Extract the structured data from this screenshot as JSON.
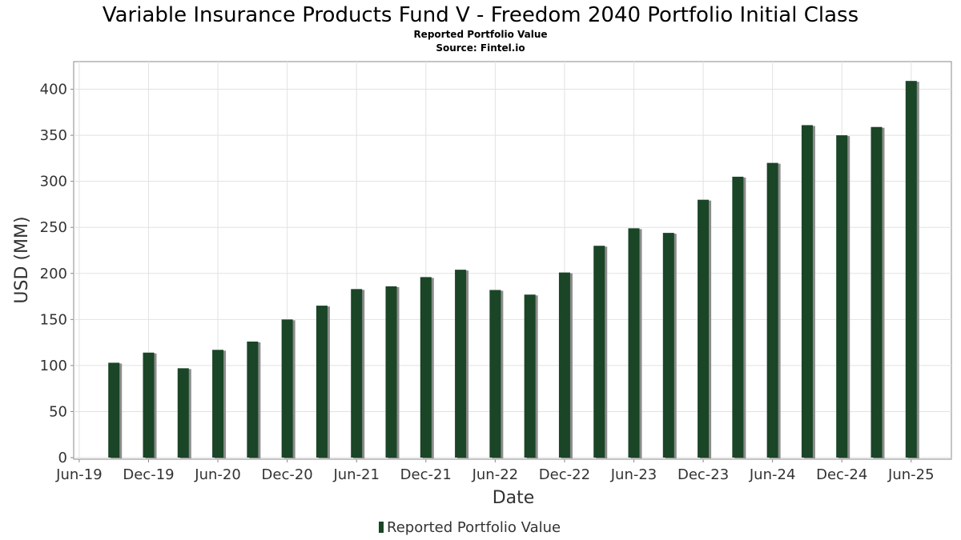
{
  "chart_data": {
    "type": "bar",
    "title": "Variable Insurance Products Fund V - Freedom 2040 Portfolio Initial Class",
    "subtitle": "Reported Portfolio Value",
    "source": "Source: Fintel.io",
    "xlabel": "Date",
    "ylabel": "USD (MM)",
    "ylim": [
      0,
      430
    ],
    "yticks": [
      0,
      50,
      100,
      150,
      200,
      250,
      300,
      350,
      400
    ],
    "xlim": [
      2019.46,
      2025.79
    ],
    "xticks": [
      {
        "label": "Jun-19",
        "x": 2019.5
      },
      {
        "label": "Dec-19",
        "x": 2020.0
      },
      {
        "label": "Jun-20",
        "x": 2020.5
      },
      {
        "label": "Dec-20",
        "x": 2021.0
      },
      {
        "label": "Jun-21",
        "x": 2021.5
      },
      {
        "label": "Dec-21",
        "x": 2022.0
      },
      {
        "label": "Jun-22",
        "x": 2022.5
      },
      {
        "label": "Dec-22",
        "x": 2023.0
      },
      {
        "label": "Jun-23",
        "x": 2023.5
      },
      {
        "label": "Dec-23",
        "x": 2024.0
      },
      {
        "label": "Jun-24",
        "x": 2024.5
      },
      {
        "label": "Dec-24",
        "x": 2025.0
      },
      {
        "label": "Jun-25",
        "x": 2025.5
      }
    ],
    "grid": true,
    "legend": {
      "position": "bottom",
      "color": "#1a4526"
    },
    "series": [
      {
        "name": "Reported Portfolio Value",
        "color": "#1a4526",
        "x": [
          2019.75,
          2020.0,
          2020.25,
          2020.5,
          2020.75,
          2021.0,
          2021.25,
          2021.5,
          2021.75,
          2022.0,
          2022.25,
          2022.5,
          2022.75,
          2023.0,
          2023.25,
          2023.5,
          2023.75,
          2024.0,
          2024.25,
          2024.5,
          2024.75,
          2025.0,
          2025.25,
          2025.5
        ],
        "values": [
          103,
          114,
          97,
          117,
          126,
          150,
          165,
          183,
          186,
          196,
          204,
          182,
          177,
          201,
          230,
          249,
          244,
          280,
          305,
          320,
          361,
          350,
          359,
          409
        ]
      }
    ]
  }
}
